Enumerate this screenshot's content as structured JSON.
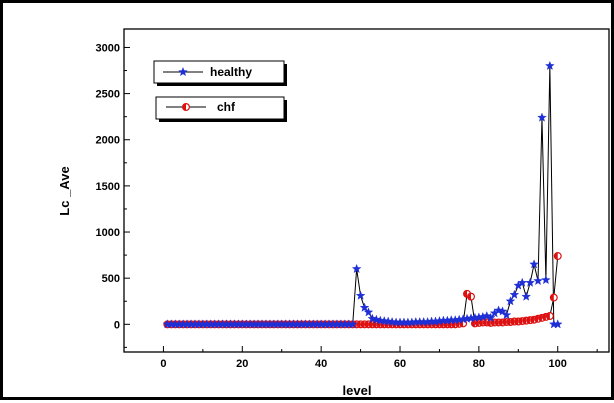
{
  "chart_data": {
    "type": "line",
    "xlabel": "level",
    "ylabel": "Lc _Ave",
    "xlim": [
      -10,
      113
    ],
    "ylim": [
      -300,
      3200
    ],
    "xticks": [
      0,
      20,
      40,
      60,
      80,
      100
    ],
    "yticks": [
      0,
      500,
      1000,
      1500,
      2000,
      2500,
      3000
    ],
    "grid": false,
    "legend_position": "top-left, inside, as two separate boxes",
    "series": [
      {
        "name": "healthy",
        "marker": "star",
        "color": "#1f2fd6",
        "line_color": "#000000",
        "x": [
          1,
          2,
          3,
          4,
          5,
          6,
          7,
          8,
          9,
          10,
          11,
          12,
          13,
          14,
          15,
          16,
          17,
          18,
          19,
          20,
          21,
          22,
          23,
          24,
          25,
          26,
          27,
          28,
          29,
          30,
          31,
          32,
          33,
          34,
          35,
          36,
          37,
          38,
          39,
          40,
          41,
          42,
          43,
          44,
          45,
          46,
          47,
          48,
          49,
          50,
          51,
          52,
          53,
          54,
          55,
          56,
          57,
          58,
          59,
          60,
          61,
          62,
          63,
          64,
          65,
          66,
          67,
          68,
          69,
          70,
          71,
          72,
          73,
          74,
          75,
          76,
          77,
          78,
          79,
          80,
          81,
          82,
          83,
          84,
          85,
          86,
          87,
          88,
          89,
          90,
          91,
          92,
          93,
          94,
          95,
          96,
          97,
          98,
          99,
          100
        ],
        "y": [
          0,
          0,
          0,
          0,
          0,
          0,
          0,
          0,
          0,
          0,
          0,
          0,
          0,
          0,
          0,
          0,
          0,
          0,
          0,
          0,
          0,
          0,
          0,
          0,
          0,
          0,
          0,
          0,
          0,
          0,
          0,
          0,
          0,
          0,
          0,
          0,
          0,
          0,
          0,
          0,
          0,
          0,
          0,
          0,
          0,
          0,
          0,
          0,
          600,
          310,
          180,
          130,
          60,
          50,
          40,
          35,
          30,
          25,
          20,
          20,
          20,
          20,
          20,
          25,
          25,
          25,
          25,
          30,
          30,
          35,
          40,
          40,
          45,
          45,
          50,
          55,
          60,
          65,
          70,
          75,
          80,
          90,
          70,
          120,
          150,
          140,
          100,
          250,
          320,
          420,
          450,
          300,
          450,
          650,
          470,
          2240,
          480,
          2800,
          0,
          0
        ]
      },
      {
        "name": "chf",
        "marker": "half-filled circle",
        "color": "#dd1111",
        "line_color": "#000000",
        "x": [
          1,
          2,
          3,
          4,
          5,
          6,
          7,
          8,
          9,
          10,
          11,
          12,
          13,
          14,
          15,
          16,
          17,
          18,
          19,
          20,
          21,
          22,
          23,
          24,
          25,
          26,
          27,
          28,
          29,
          30,
          31,
          32,
          33,
          34,
          35,
          36,
          37,
          38,
          39,
          40,
          41,
          42,
          43,
          44,
          45,
          46,
          47,
          48,
          49,
          50,
          51,
          52,
          53,
          54,
          55,
          56,
          57,
          58,
          59,
          60,
          61,
          62,
          63,
          64,
          65,
          66,
          67,
          68,
          69,
          70,
          71,
          72,
          73,
          74,
          75,
          76,
          77,
          78,
          79,
          80,
          81,
          82,
          83,
          84,
          85,
          86,
          87,
          88,
          89,
          90,
          91,
          92,
          93,
          94,
          95,
          96,
          97,
          98,
          99,
          100
        ],
        "y": [
          0,
          0,
          0,
          0,
          0,
          0,
          0,
          0,
          0,
          0,
          0,
          0,
          0,
          0,
          0,
          0,
          0,
          0,
          0,
          0,
          0,
          0,
          0,
          0,
          0,
          0,
          0,
          0,
          0,
          0,
          0,
          0,
          0,
          0,
          0,
          0,
          0,
          0,
          0,
          0,
          0,
          0,
          0,
          0,
          0,
          0,
          0,
          0,
          0,
          0,
          0,
          0,
          0,
          0,
          0,
          0,
          0,
          0,
          0,
          0,
          0,
          0,
          0,
          0,
          0,
          0,
          0,
          0,
          0,
          0,
          0,
          0,
          0,
          0,
          5,
          10,
          330,
          300,
          10,
          15,
          20,
          20,
          15,
          20,
          20,
          20,
          25,
          25,
          30,
          30,
          35,
          40,
          45,
          50,
          60,
          70,
          80,
          90,
          290,
          740
        ]
      }
    ]
  }
}
